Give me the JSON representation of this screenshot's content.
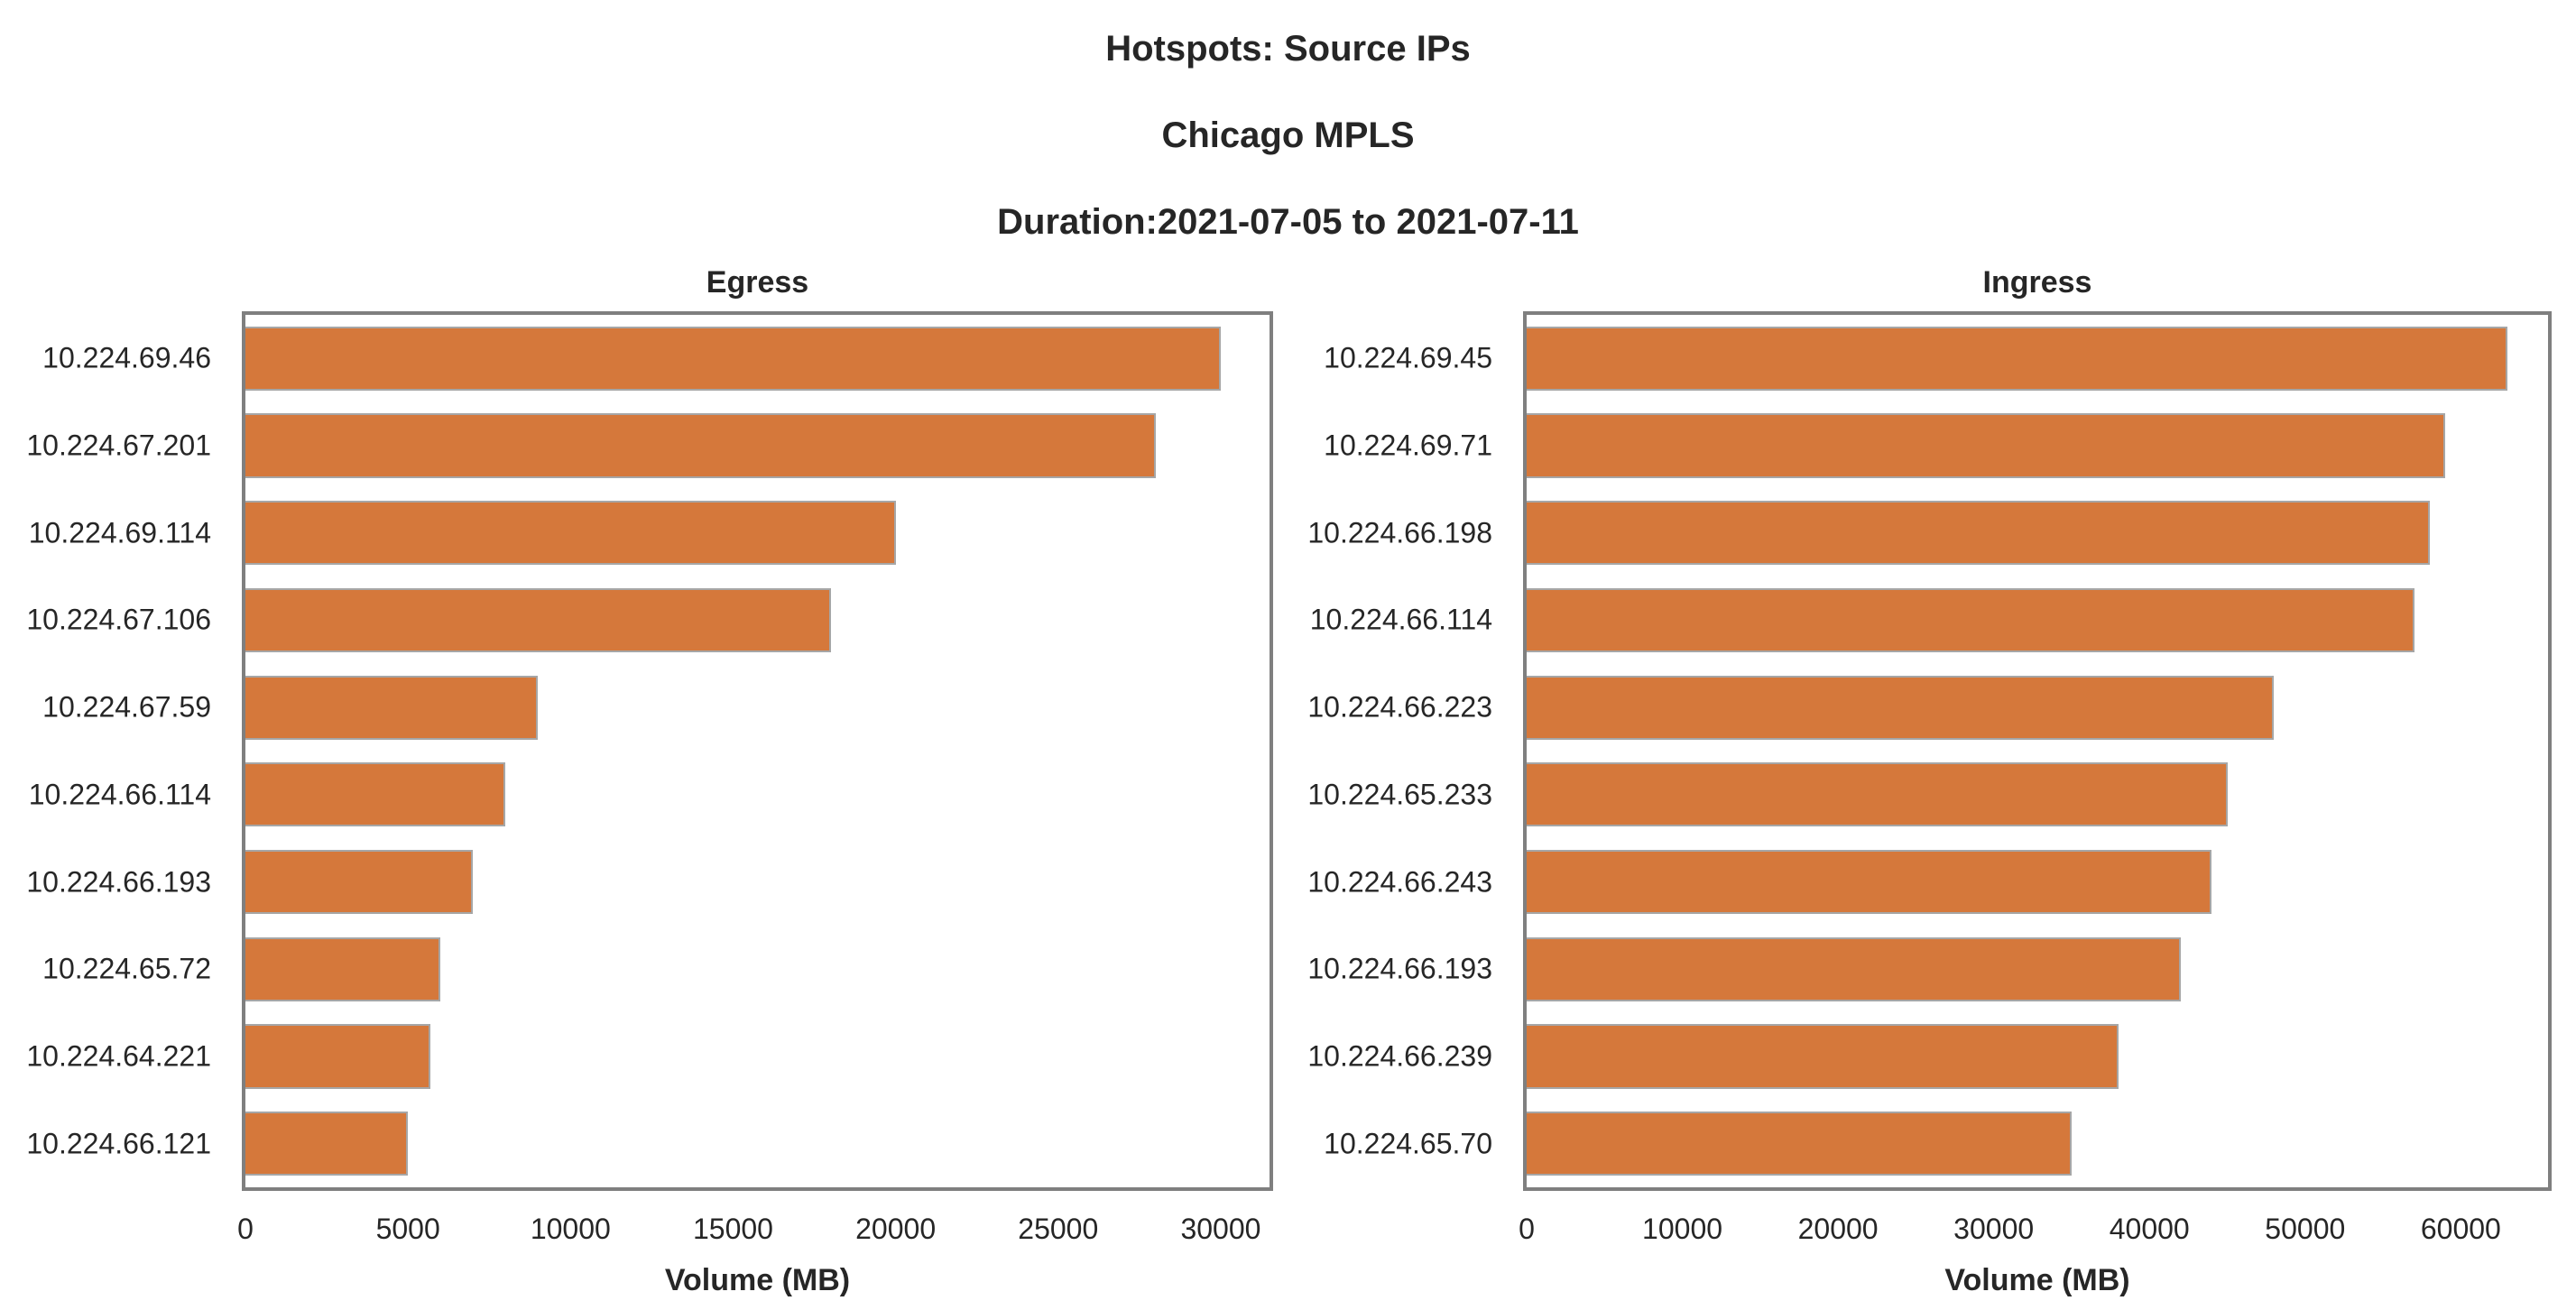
{
  "header": {
    "line1": "Hotspots: Source IPs",
    "line2": "Chicago MPLS",
    "line3": "Duration:2021-07-05 to 2021-07-11"
  },
  "colors": {
    "bar": "#d5783b",
    "bar_edge": "#a6a6a6",
    "spine": "#7f7f7f",
    "text": "#262626",
    "background": "#ffffff"
  },
  "chart_data": [
    {
      "type": "bar",
      "orientation": "horizontal",
      "title": "Egress",
      "categories": [
        "10.224.69.46",
        "10.224.67.201",
        "10.224.69.114",
        "10.224.67.106",
        "10.224.67.59",
        "10.224.66.114",
        "10.224.66.193",
        "10.224.65.72",
        "10.224.64.221",
        "10.224.66.121"
      ],
      "values": [
        30000,
        28000,
        20000,
        18000,
        9000,
        8000,
        7000,
        6000,
        5700,
        5000
      ],
      "xlabel": "Volume (MB)",
      "xticks": [
        0,
        5000,
        10000,
        15000,
        20000,
        25000,
        30000
      ],
      "xlim": [
        0,
        31500
      ],
      "grid": false,
      "legend": false,
      "bar_color": "#d5783b"
    },
    {
      "type": "bar",
      "orientation": "horizontal",
      "title": "Ingress",
      "categories": [
        "10.224.69.45",
        "10.224.69.71",
        "10.224.66.198",
        "10.224.66.114",
        "10.224.66.223",
        "10.224.65.233",
        "10.224.66.243",
        "10.224.66.193",
        "10.224.66.239",
        "10.224.65.70"
      ],
      "values": [
        63000,
        59000,
        58000,
        57000,
        48000,
        45000,
        44000,
        42000,
        38000,
        35000
      ],
      "xlabel": "Volume (MB)",
      "xticks": [
        0,
        10000,
        20000,
        30000,
        40000,
        50000,
        60000
      ],
      "xlim": [
        0,
        65600
      ],
      "grid": false,
      "legend": false,
      "bar_color": "#d5783b"
    }
  ]
}
